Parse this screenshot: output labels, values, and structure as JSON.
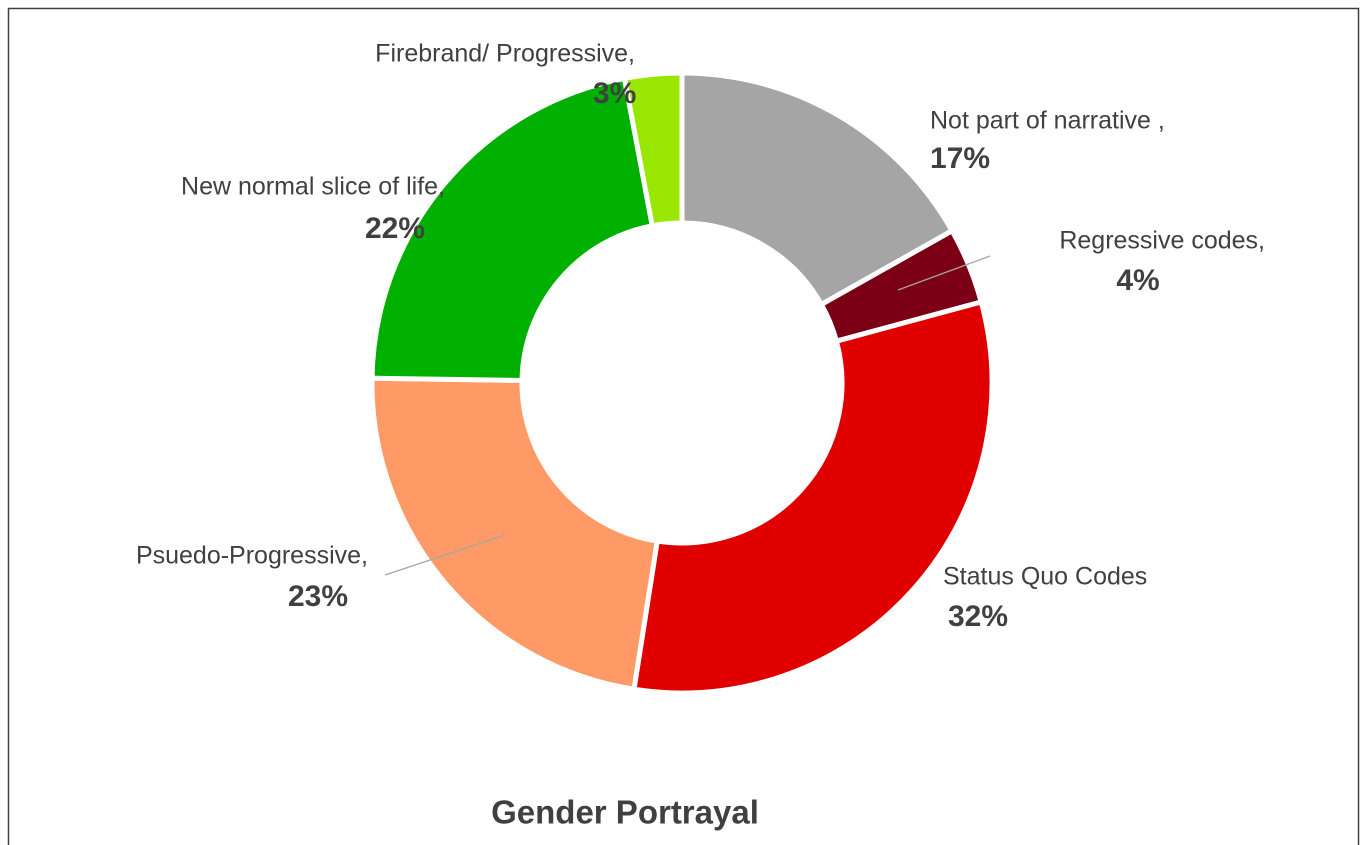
{
  "chart_data": {
    "type": "donut",
    "title": "Gender Portrayal",
    "categories": [
      "Not part of narrative ,",
      "Regressive codes,",
      "Status Quo Codes",
      "Psuedo-Progressive,",
      "New normal slice of life,",
      "Firebrand/ Progressive,"
    ],
    "values": [
      17,
      4,
      32,
      23,
      22,
      3
    ],
    "value_labels": [
      "17%",
      "4%",
      "32%",
      "23%",
      "22%",
      "3%"
    ],
    "colors": [
      "#a5a5a5",
      "#7b0016",
      "#e00000",
      "#ff9966",
      "#00b000",
      "#99e600"
    ]
  }
}
